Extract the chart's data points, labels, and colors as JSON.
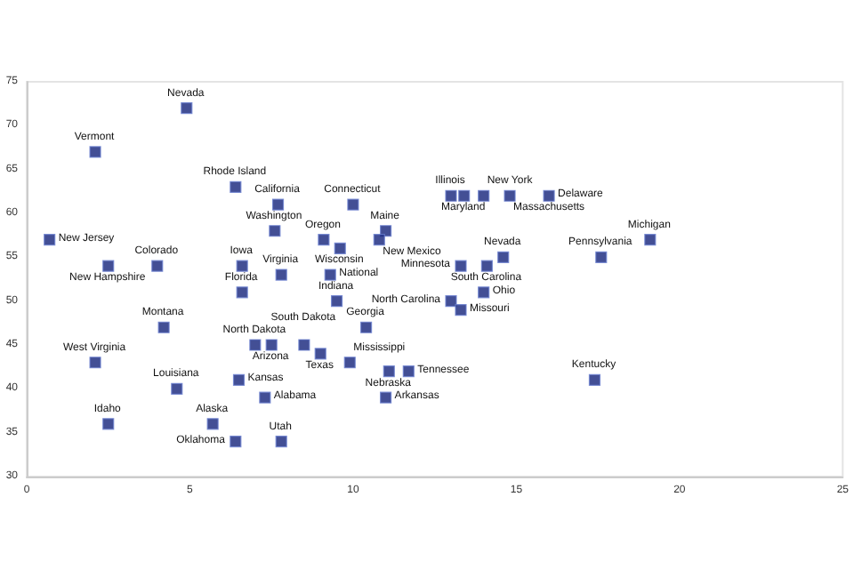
{
  "chart_data": {
    "type": "scatter",
    "xlim": [
      0,
      25
    ],
    "xticks": [
      0,
      5,
      10,
      15,
      20,
      25
    ],
    "ylim": [
      30,
      75
    ],
    "yticks": [
      30,
      35,
      40,
      45,
      50,
      55,
      60,
      65,
      70,
      75
    ],
    "grid": false,
    "marker": "square",
    "x": [
      4.9,
      2.1,
      6.4,
      7.7,
      10.0,
      13.0,
      13.4,
      14.0,
      14.8,
      16.0,
      0.7,
      7.6,
      9.1,
      9.6,
      11.0,
      10.8,
      19.1,
      17.6,
      14.6,
      13.3,
      14.1,
      9.3,
      4.0,
      2.5,
      6.6,
      7.8,
      6.6,
      4.2,
      7.0,
      7.5,
      8.5,
      9.0,
      9.9,
      10.4,
      9.5,
      13.0,
      13.3,
      14.0,
      11.1,
      11.7,
      11.0,
      17.4,
      2.1,
      4.6,
      6.5,
      7.3,
      2.5,
      5.7,
      6.4,
      7.8
    ],
    "series": [
      {
        "color": "#14237a",
        "values": [
          72,
          67,
          63,
          61,
          61,
          62,
          62,
          62,
          62,
          62,
          57,
          58,
          57,
          56,
          58,
          57,
          57,
          55,
          55,
          54,
          54,
          53,
          54,
          54,
          54,
          53,
          51,
          47,
          45,
          45,
          45,
          44,
          43,
          47,
          50,
          50,
          49,
          51,
          42,
          42,
          39,
          41,
          43,
          40,
          41,
          39,
          36,
          36,
          34,
          34
        ]
      }
    ],
    "annotations": [
      {
        "text": "Nevada",
        "x": 4.9,
        "y": 72
      },
      {
        "text": "Vermont",
        "x": 2.1,
        "y": 67
      },
      {
        "text": "Rhode Island",
        "x": 6.4,
        "y": 63
      },
      {
        "text": "California",
        "x": 7.7,
        "y": 61
      },
      {
        "text": "Connecticut",
        "x": 10.0,
        "y": 61
      },
      {
        "text": "Illinois",
        "x": 13.0,
        "y": 62
      },
      {
        "text": "Maryland",
        "x": 13.4,
        "y": 62
      },
      {
        "text": "New York",
        "x": 14.0,
        "y": 62
      },
      {
        "text": "Massachusetts",
        "x": 14.8,
        "y": 62
      },
      {
        "text": "Delaware",
        "x": 16.0,
        "y": 62
      },
      {
        "text": "New Jersey",
        "x": 0.7,
        "y": 57
      },
      {
        "text": "Washington",
        "x": 7.6,
        "y": 58
      },
      {
        "text": "Oregon",
        "x": 9.1,
        "y": 57
      },
      {
        "text": "Wisconsin",
        "x": 9.6,
        "y": 56
      },
      {
        "text": "Maine",
        "x": 11.0,
        "y": 58
      },
      {
        "text": "New Mexico",
        "x": 10.8,
        "y": 57
      },
      {
        "text": "Michigan",
        "x": 19.1,
        "y": 57
      },
      {
        "text": "Pennsylvania",
        "x": 17.6,
        "y": 55
      },
      {
        "text": "Nevada",
        "x": 14.6,
        "y": 55
      },
      {
        "text": "Minnesota",
        "x": 13.3,
        "y": 54
      },
      {
        "text": "South Carolina",
        "x": 14.1,
        "y": 54
      },
      {
        "text": "National",
        "x": 9.3,
        "y": 53
      },
      {
        "text": "Colorado",
        "x": 4.0,
        "y": 54
      },
      {
        "text": "New Hampshire",
        "x": 2.5,
        "y": 54
      },
      {
        "text": "Iowa",
        "x": 6.6,
        "y": 54
      },
      {
        "text": "Virginia",
        "x": 7.8,
        "y": 53
      },
      {
        "text": "Florida",
        "x": 6.6,
        "y": 51
      },
      {
        "text": "Montana",
        "x": 4.2,
        "y": 47
      },
      {
        "text": "North Dakota",
        "x": 7.0,
        "y": 45
      },
      {
        "text": "Arizona",
        "x": 7.5,
        "y": 45
      },
      {
        "text": "South Dakota",
        "x": 8.5,
        "y": 45
      },
      {
        "text": "Texas",
        "x": 9.0,
        "y": 44
      },
      {
        "text": "Mississippi",
        "x": 9.9,
        "y": 43
      },
      {
        "text": "Georgia",
        "x": 10.4,
        "y": 47
      },
      {
        "text": "Indiana",
        "x": 9.5,
        "y": 50
      },
      {
        "text": "North Carolina",
        "x": 13.0,
        "y": 50
      },
      {
        "text": "Missouri",
        "x": 13.3,
        "y": 49
      },
      {
        "text": "Ohio",
        "x": 14.0,
        "y": 51
      },
      {
        "text": "Nebraska",
        "x": 11.1,
        "y": 42
      },
      {
        "text": "Tennessee",
        "x": 11.7,
        "y": 42
      },
      {
        "text": "Arkansas",
        "x": 11.0,
        "y": 39
      },
      {
        "text": "Kentucky",
        "x": 17.4,
        "y": 41
      },
      {
        "text": "West Virginia",
        "x": 2.1,
        "y": 43
      },
      {
        "text": "Louisiana",
        "x": 4.6,
        "y": 40
      },
      {
        "text": "Kansas",
        "x": 6.5,
        "y": 41
      },
      {
        "text": "Alabama",
        "x": 7.3,
        "y": 39
      },
      {
        "text": "Idaho",
        "x": 2.5,
        "y": 36
      },
      {
        "text": "Alaska",
        "x": 5.7,
        "y": 36
      },
      {
        "text": "Oklahoma",
        "x": 6.4,
        "y": 34
      },
      {
        "text": "Utah",
        "x": 7.8,
        "y": 34
      }
    ]
  }
}
